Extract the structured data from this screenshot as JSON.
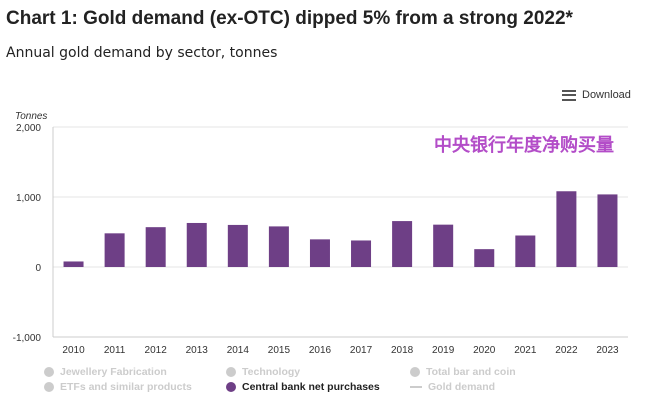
{
  "title": "Chart 1: Gold demand (ex-OTC) dipped 5% from a strong 2022*",
  "subtitle": "Annual gold demand by sector, tonnes",
  "download_label": "Download",
  "chart_data": {
    "type": "bar",
    "ylabel": "Tonnes",
    "ylim": [
      -1000,
      2000
    ],
    "yticks": [
      "2,000",
      "1,000",
      "0",
      "-1,000"
    ],
    "ytick_values": [
      2000,
      1000,
      0,
      -1000
    ],
    "grid": true,
    "categories": [
      "2010",
      "2011",
      "2012",
      "2013",
      "2014",
      "2015",
      "2016",
      "2017",
      "2018",
      "2019",
      "2020",
      "2021",
      "2022",
      "2023"
    ],
    "series": [
      {
        "name": "Central bank net purchases",
        "values": [
          79,
          481,
          569,
          629,
          601,
          580,
          395,
          379,
          656,
          605,
          255,
          450,
          1082,
          1037
        ],
        "color": "#6e3f86"
      }
    ],
    "annotation": "中央银行年度净购买量",
    "annotation_color": "#b34dc8",
    "legend_position": "bottom",
    "legend": [
      {
        "label": "Jewellery Fabrication",
        "active": false,
        "marker": "dot"
      },
      {
        "label": "Technology",
        "active": false,
        "marker": "dot"
      },
      {
        "label": "Total bar and coin",
        "active": false,
        "marker": "dot"
      },
      {
        "label": "ETFs and similar products",
        "active": false,
        "marker": "dot"
      },
      {
        "label": "Central bank net purchases",
        "active": true,
        "marker": "dot"
      },
      {
        "label": "Gold demand",
        "active": false,
        "marker": "line"
      }
    ]
  }
}
